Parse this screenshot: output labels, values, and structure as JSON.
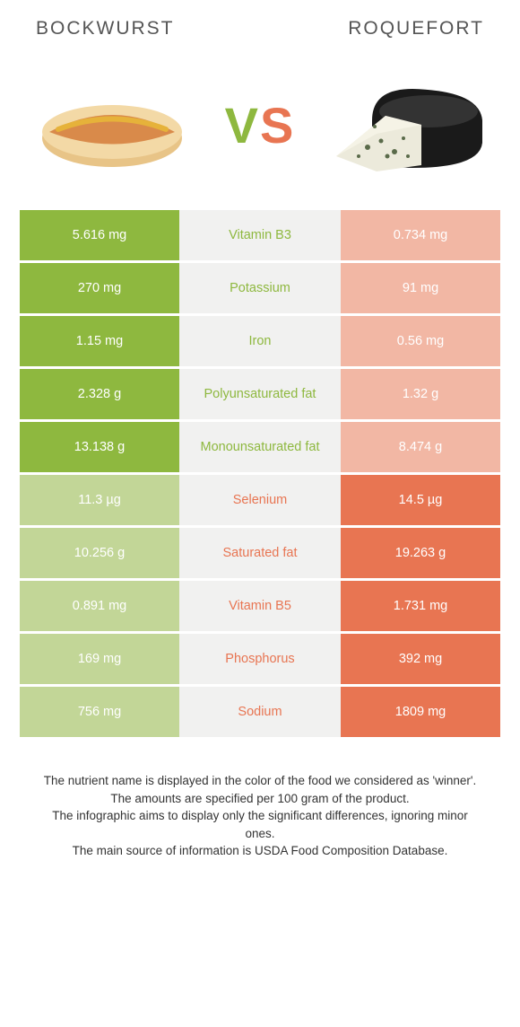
{
  "header": {
    "left": "BOCKWURST",
    "right": "ROQUEFORT"
  },
  "vs": {
    "v": "V",
    "s": "S"
  },
  "colors": {
    "left": "#8eb83f",
    "right": "#e87552",
    "mid": "#f1f1f0",
    "left_dim": "#c2d697",
    "right_dim": "#f2b7a4"
  },
  "rows": [
    {
      "label": "Vitamin B3",
      "left": "5.616 mg",
      "right": "0.734 mg",
      "winner": "left"
    },
    {
      "label": "Potassium",
      "left": "270 mg",
      "right": "91 mg",
      "winner": "left"
    },
    {
      "label": "Iron",
      "left": "1.15 mg",
      "right": "0.56 mg",
      "winner": "left"
    },
    {
      "label": "Polyunsaturated fat",
      "left": "2.328 g",
      "right": "1.32 g",
      "winner": "left"
    },
    {
      "label": "Monounsaturated fat",
      "left": "13.138 g",
      "right": "8.474 g",
      "winner": "left"
    },
    {
      "label": "Selenium",
      "left": "11.3 µg",
      "right": "14.5 µg",
      "winner": "right"
    },
    {
      "label": "Saturated fat",
      "left": "10.256 g",
      "right": "19.263 g",
      "winner": "right"
    },
    {
      "label": "Vitamin B5",
      "left": "0.891 mg",
      "right": "1.731 mg",
      "winner": "right"
    },
    {
      "label": "Phosphorus",
      "left": "169 mg",
      "right": "392 mg",
      "winner": "right"
    },
    {
      "label": "Sodium",
      "left": "756 mg",
      "right": "1809 mg",
      "winner": "right"
    }
  ],
  "footnotes": [
    "The nutrient name is displayed in the color of the food we considered as 'winner'.",
    "The amounts are specified per 100 gram of the product.",
    "The infographic aims to display only the significant differences, ignoring minor ones.",
    "The main source of information is USDA Food Composition Database."
  ]
}
